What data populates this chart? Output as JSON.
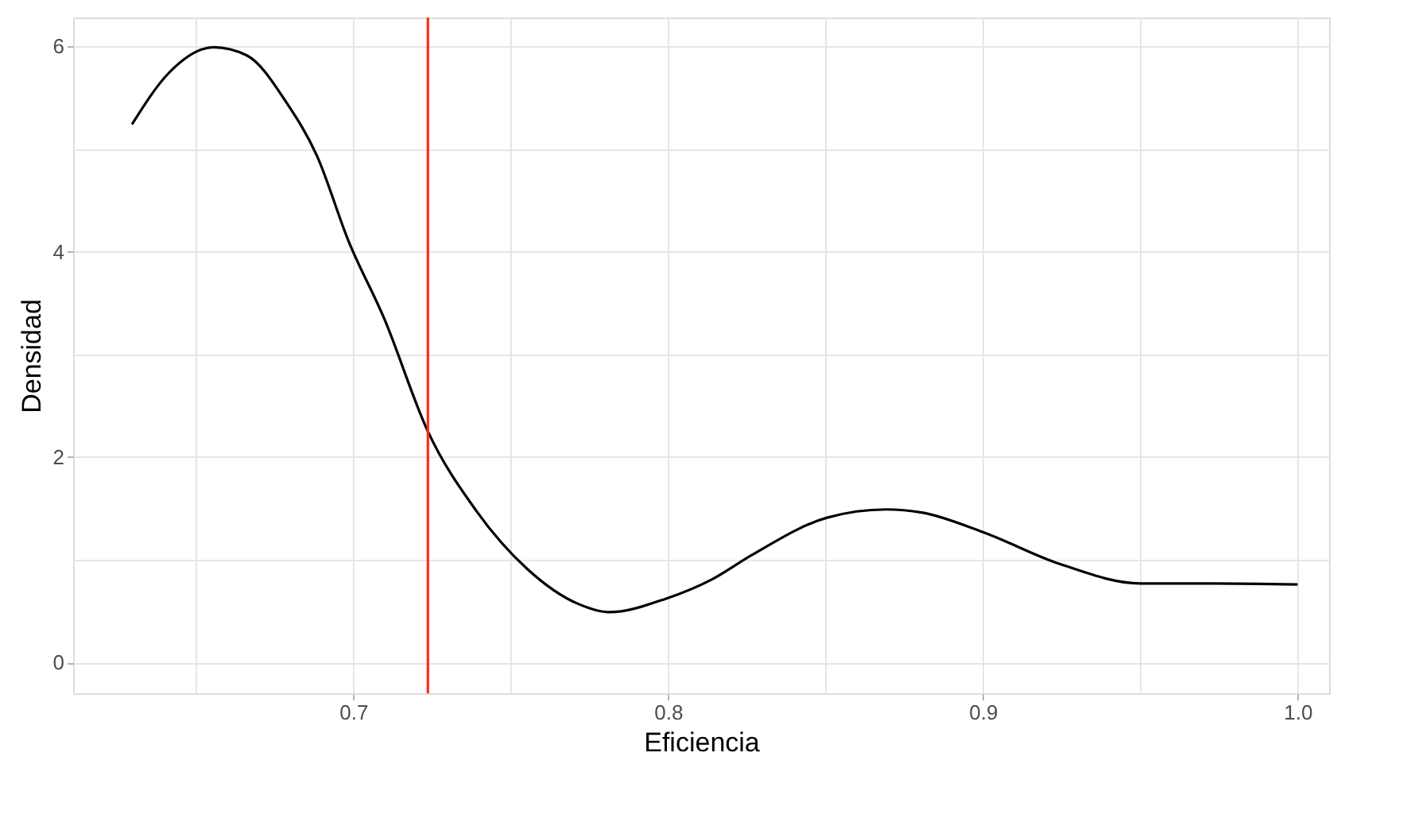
{
  "chart_data": {
    "type": "line",
    "xlabel": "Eficiencia",
    "ylabel": "Densidad",
    "x": [
      0.6297,
      0.6414,
      0.6556,
      0.6662,
      0.6788,
      0.6885,
      0.6984,
      0.7098,
      0.7237,
      0.739,
      0.7553,
      0.7715,
      0.7813,
      0.7992,
      0.814,
      0.8268,
      0.8505,
      0.8693,
      0.8806,
      0.9,
      0.9244,
      0.95,
      0.973,
      1.0
    ],
    "series": [
      {
        "color": "#000000",
        "values": [
          5.24,
          5.74,
          5.99,
          5.91,
          5.45,
          4.93,
          4.11,
          3.35,
          2.25,
          1.48,
          0.91,
          0.57,
          0.49,
          0.62,
          0.81,
          1.05,
          1.41,
          1.49,
          1.46,
          1.27,
          0.96,
          0.77,
          0.77,
          0.76
        ]
      }
    ],
    "xlim": [
      0.611,
      1.01
    ],
    "ylim": [
      -0.3,
      6.28
    ],
    "xticks": [
      {
        "value": 0.65,
        "label": null
      },
      0.7,
      {
        "value": 0.75,
        "label": null
      },
      0.8,
      {
        "value": 0.85,
        "label": null
      },
      0.9,
      {
        "value": 0.95,
        "label": null
      },
      {
        "value": 1.0,
        "label": "1.0"
      }
    ],
    "yticks": [
      0,
      {
        "value": 1,
        "label": null
      },
      2,
      {
        "value": 3,
        "label": null
      },
      4,
      {
        "value": 5,
        "label": null
      },
      6
    ],
    "ref_lines": [
      {
        "axis": "x",
        "value": 0.7237,
        "color": "#ff2a1a"
      }
    ],
    "grid": true,
    "line_style": "solid",
    "marker": "none"
  }
}
